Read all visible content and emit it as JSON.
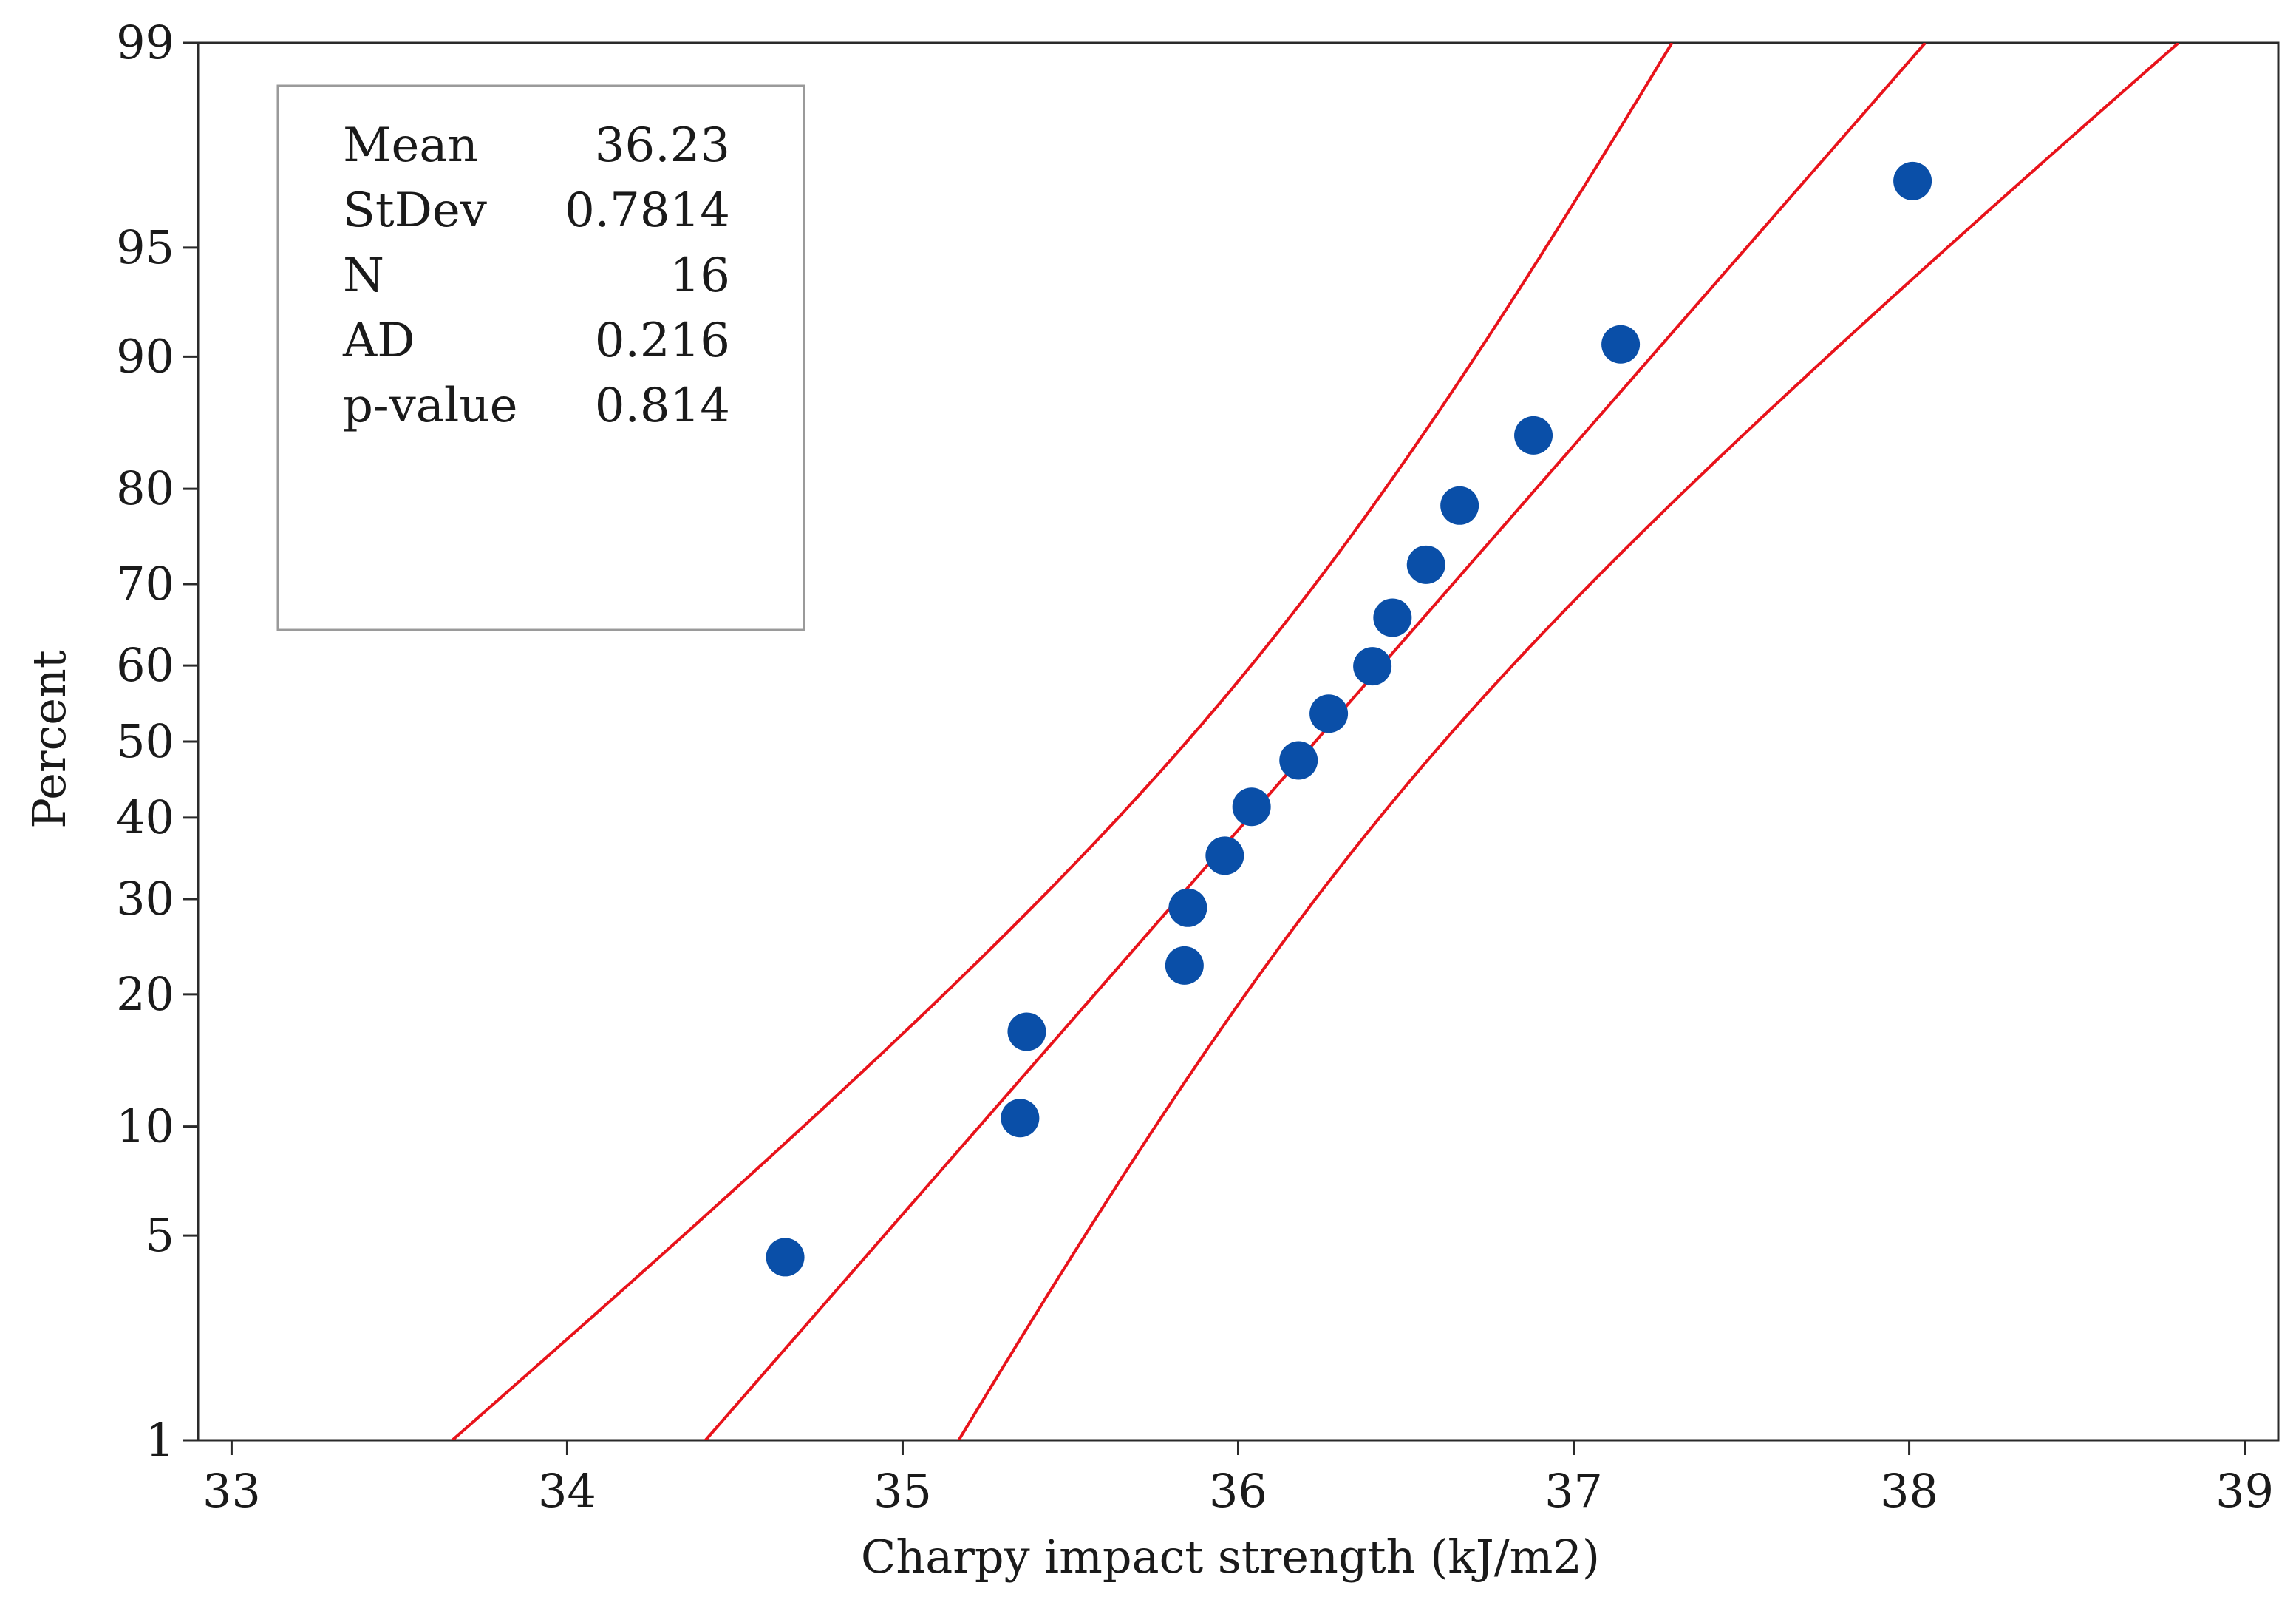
{
  "chart_data": {
    "type": "scatter",
    "subtype": "normal-probability-plot",
    "title": "",
    "xlabel": "Charpy impact strength (kJ/m2)",
    "ylabel": "Percent",
    "xlim": [
      32.9,
      39.1
    ],
    "x_ticks": [
      33,
      34,
      35,
      36,
      37,
      38,
      39
    ],
    "y_ticks": [
      1,
      5,
      10,
      20,
      30,
      40,
      50,
      60,
      70,
      80,
      90,
      95,
      99
    ],
    "ylim": [
      1,
      99
    ],
    "y_scale": "normal-probability",
    "points": [
      {
        "x": 34.65,
        "y": 4.3
      },
      {
        "x": 35.35,
        "y": 10.5
      },
      {
        "x": 35.37,
        "y": 16.7
      },
      {
        "x": 35.84,
        "y": 22.8
      },
      {
        "x": 35.85,
        "y": 29.0
      },
      {
        "x": 35.96,
        "y": 35.2
      },
      {
        "x": 36.04,
        "y": 41.4
      },
      {
        "x": 36.18,
        "y": 47.5
      },
      {
        "x": 36.27,
        "y": 53.7
      },
      {
        "x": 36.4,
        "y": 59.9
      },
      {
        "x": 36.46,
        "y": 66.0
      },
      {
        "x": 36.56,
        "y": 72.2
      },
      {
        "x": 36.66,
        "y": 78.4
      },
      {
        "x": 36.88,
        "y": 84.6
      },
      {
        "x": 37.14,
        "y": 90.7
      },
      {
        "x": 38.01,
        "y": 96.9
      }
    ],
    "fit": {
      "mean": 36.23,
      "stdev": 0.7814
    },
    "confidence_bands": true,
    "colors": {
      "points": "#0a4fa8",
      "lines": "#e8131b",
      "axis": "#2a2a2a",
      "legend_border": "#9a9a9a"
    },
    "stats_box": {
      "position": "top-left",
      "rows": [
        {
          "label": "Mean",
          "value": "36.23"
        },
        {
          "label": "StDev",
          "value": "0.7814"
        },
        {
          "label": "N",
          "value": "16"
        },
        {
          "label": "AD",
          "value": "0.216"
        },
        {
          "label": "p-value",
          "value": "0.814"
        }
      ]
    }
  }
}
